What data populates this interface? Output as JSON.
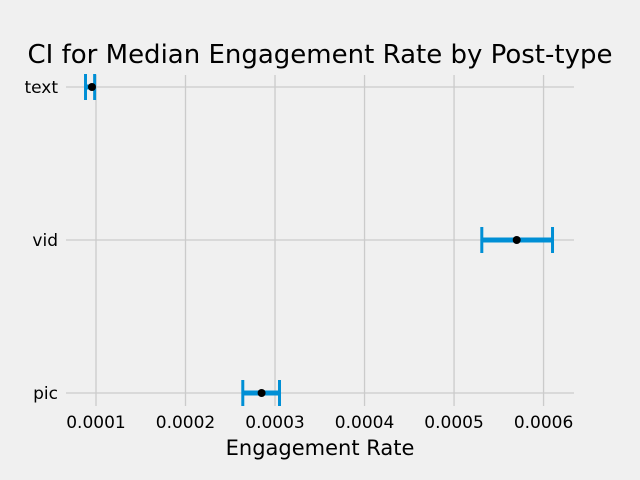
{
  "chart_data": {
    "type": "errorbar",
    "orientation": "horizontal",
    "title": "CI for Median Engagement Rate by Post-type",
    "xlabel": "Engagement Rate",
    "ylabel": "",
    "categories": [
      "pic",
      "vid",
      "text"
    ],
    "medians": [
      0.000285,
      0.00057,
      9.55e-05
    ],
    "ci_low": [
      0.000264,
      0.000531,
      8.83e-05
    ],
    "ci_high": [
      0.000305,
      0.00061,
      9.85e-05
    ],
    "xlim": [
      6.65e-05,
      0.000634
    ],
    "xticks": [
      0.0001,
      0.0002,
      0.0003,
      0.0004,
      0.0005,
      0.0006
    ],
    "xtick_labels": [
      "0.0001",
      "0.0002",
      "0.0003",
      "0.0004",
      "0.0005",
      "0.0006"
    ],
    "grid": true,
    "colors": {
      "background": "#f0f0f0",
      "grid": "#cbcbcb",
      "bar": "#008fd5",
      "point": "#000000"
    }
  }
}
